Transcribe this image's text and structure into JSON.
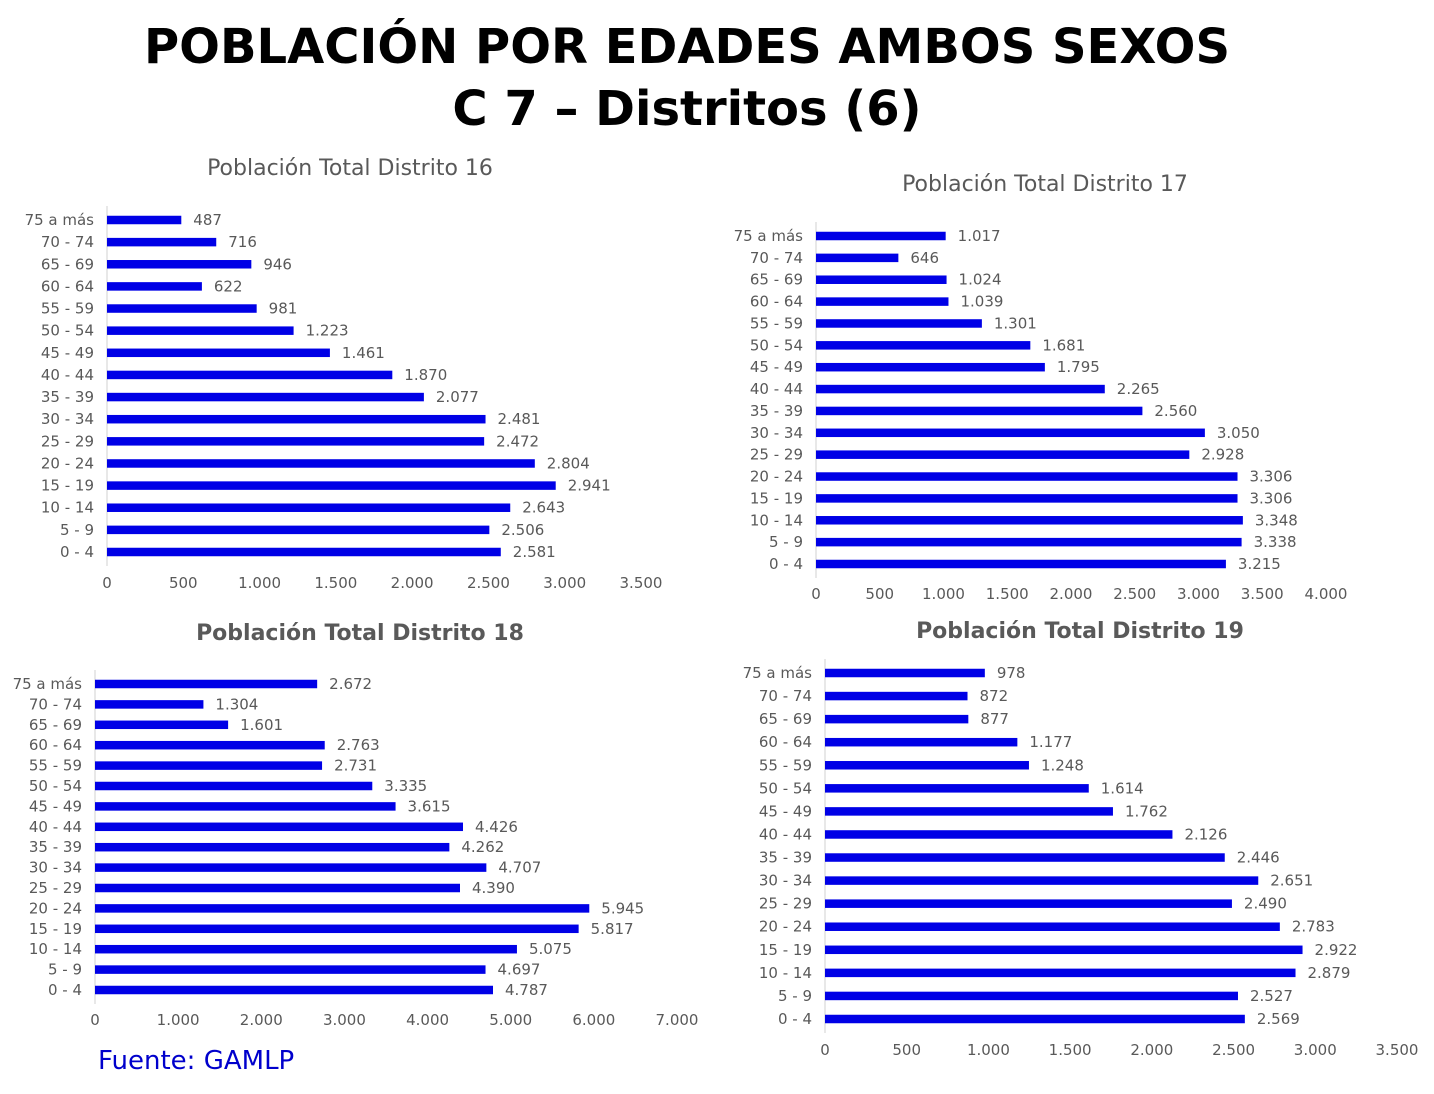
{
  "title": {
    "line1": "POBLACIÓN POR EDADES AMBOS SEXOS",
    "line2": "C 7 – Distritos (6)"
  },
  "source": "Fuente: GAMLP",
  "colors": {
    "bar": "#0000e6",
    "axis": "#d0d0d0",
    "text": "#595959",
    "title": "#000000",
    "source": "#0000cc"
  },
  "chart_data": [
    {
      "type": "bar",
      "orientation": "horizontal",
      "title": "Población Total Distrito 16",
      "categories": [
        "75 a más",
        "70 - 74",
        "65 - 69",
        "60 - 64",
        "55 - 59",
        "50 - 54",
        "45 - 49",
        "40 - 44",
        "35 - 39",
        "30 - 34",
        "25 - 29",
        "20 - 24",
        "15 - 19",
        "10 - 14",
        "5 - 9",
        "0 - 4"
      ],
      "values": [
        487,
        716,
        946,
        622,
        981,
        1223,
        1461,
        1870,
        2077,
        2481,
        2472,
        2804,
        2941,
        2643,
        2506,
        2581
      ],
      "value_labels": [
        "487",
        "716",
        "946",
        "622",
        "981",
        "1.223",
        "1.461",
        "1.870",
        "2.077",
        "2.481",
        "2.472",
        "2.804",
        "2.941",
        "2.643",
        "2.506",
        "2.581"
      ],
      "xlim": [
        0,
        3500
      ],
      "ticks": [
        "0",
        "500",
        "1.000",
        "1.500",
        "2.000",
        "2.500",
        "3.000",
        "3.500"
      ],
      "grid": false,
      "legend": "none"
    },
    {
      "type": "bar",
      "orientation": "horizontal",
      "title": "Población Total Distrito 17",
      "categories": [
        "75 a más",
        "70 - 74",
        "65 - 69",
        "60 - 64",
        "55 - 59",
        "50 - 54",
        "45 - 49",
        "40 - 44",
        "35 - 39",
        "30 - 34",
        "25 - 29",
        "20 - 24",
        "15 - 19",
        "10 - 14",
        "5 - 9",
        "0 - 4"
      ],
      "values": [
        1017,
        646,
        1024,
        1039,
        1301,
        1681,
        1795,
        2265,
        2560,
        3050,
        2928,
        3306,
        3306,
        3348,
        3338,
        3215
      ],
      "value_labels": [
        "1.017",
        "646",
        "1.024",
        "1.039",
        "1.301",
        "1.681",
        "1.795",
        "2.265",
        "2.560",
        "3.050",
        "2.928",
        "3.306",
        "3.306",
        "3.348",
        "3.338",
        "3.215"
      ],
      "xlim": [
        0,
        4000
      ],
      "ticks": [
        "0",
        "500",
        "1.000",
        "1.500",
        "2.000",
        "2.500",
        "3.000",
        "3.500",
        "4.000"
      ],
      "grid": false,
      "legend": "none"
    },
    {
      "type": "bar",
      "orientation": "horizontal",
      "title": "Población Total Distrito 18",
      "categories": [
        "75 a más",
        "70 - 74",
        "65 - 69",
        "60 - 64",
        "55 - 59",
        "50 - 54",
        "45 - 49",
        "40 - 44",
        "35 - 39",
        "30 - 34",
        "25 - 29",
        "20 - 24",
        "15 - 19",
        "10 - 14",
        "5 - 9",
        "0 - 4"
      ],
      "values": [
        2672,
        1304,
        1601,
        2763,
        2731,
        3335,
        3615,
        4426,
        4262,
        4707,
        4390,
        5945,
        5817,
        5075,
        4697,
        4787
      ],
      "value_labels": [
        "2.672",
        "1.304",
        "1.601",
        "2.763",
        "2.731",
        "3.335",
        "3.615",
        "4.426",
        "4.262",
        "4.707",
        "4.390",
        "5.945",
        "5.817",
        "5.075",
        "4.697",
        "4.787"
      ],
      "xlim": [
        0,
        7000
      ],
      "ticks": [
        "0",
        "1.000",
        "2.000",
        "3.000",
        "4.000",
        "5.000",
        "6.000",
        "7.000"
      ],
      "grid": false,
      "legend": "none"
    },
    {
      "type": "bar",
      "orientation": "horizontal",
      "title": "Población Total Distrito 19",
      "categories": [
        "75 a más",
        "70 - 74",
        "65 - 69",
        "60 - 64",
        "55 - 59",
        "50 - 54",
        "45 - 49",
        "40 - 44",
        "35 - 39",
        "30 - 34",
        "25 - 29",
        "20 - 24",
        "15 - 19",
        "10 - 14",
        "5 - 9",
        "0 - 4"
      ],
      "values": [
        978,
        872,
        877,
        1177,
        1248,
        1614,
        1762,
        2126,
        2446,
        2651,
        2490,
        2783,
        2922,
        2879,
        2527,
        2569
      ],
      "value_labels": [
        "978",
        "872",
        "877",
        "1.177",
        "1.248",
        "1.614",
        "1.762",
        "2.126",
        "2.446",
        "2.651",
        "2.490",
        "2.783",
        "2.922",
        "2.879",
        "2.527",
        "2.569"
      ],
      "xlim": [
        0,
        3500
      ],
      "ticks": [
        "0",
        "500",
        "1.000",
        "1.500",
        "2.000",
        "2.500",
        "3.000",
        "3.500"
      ],
      "grid": false,
      "legend": "none"
    }
  ]
}
